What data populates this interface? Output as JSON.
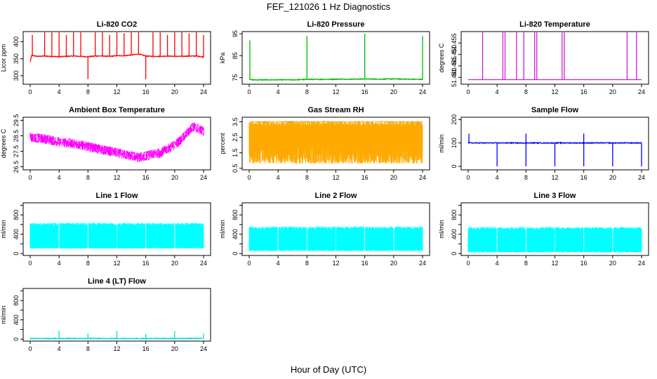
{
  "title": "FEF_121026  1 Hz Diagnostics",
  "xlabel": "Hour of Day (UTC)",
  "chart_data": [
    {
      "type": "line",
      "title": "Li-820 CO2",
      "ylabel": "Licor ppm",
      "color": "#ff0000",
      "xlim": [
        0,
        24
      ],
      "ylim": [
        275,
        430
      ],
      "xticks": [
        0,
        4,
        8,
        12,
        16,
        20,
        24
      ],
      "yticks": [
        300,
        350,
        400
      ],
      "series": [
        {
          "x": [
            0,
            0.2,
            1,
            2,
            3,
            4,
            5,
            6,
            7,
            8,
            9,
            10,
            11,
            12,
            13,
            14,
            15,
            16,
            17,
            18,
            19,
            20,
            21,
            22,
            23,
            24
          ],
          "values": [
            340,
            360,
            357,
            358,
            357,
            356,
            357,
            358,
            357,
            356,
            358,
            358,
            357,
            359,
            359,
            361,
            364,
            358,
            357,
            357,
            358,
            357,
            357,
            358,
            358,
            355
          ],
          "spikes": [
            [
              0.3,
              420
            ],
            [
              2,
              430
            ],
            [
              3,
              430
            ],
            [
              4,
              430
            ],
            [
              5,
              420
            ],
            [
              6,
              430
            ],
            [
              7,
              430
            ],
            [
              8,
              290
            ],
            [
              9,
              430
            ],
            [
              10,
              430
            ],
            [
              11,
              420
            ],
            [
              12,
              430
            ],
            [
              13,
              425
            ],
            [
              14,
              430
            ],
            [
              15,
              430
            ],
            [
              16,
              290
            ],
            [
              17,
              430
            ],
            [
              18,
              430
            ],
            [
              19,
              420
            ],
            [
              20,
              430
            ],
            [
              21,
              430
            ],
            [
              22,
              425
            ],
            [
              23,
              430
            ],
            [
              24,
              420
            ]
          ]
        }
      ]
    },
    {
      "type": "line",
      "title": "Li-820 Pressure",
      "ylabel": "kPa",
      "color": "#00bb00",
      "xlim": [
        0,
        24
      ],
      "ylim": [
        72,
        96
      ],
      "xticks": [
        0,
        4,
        8,
        12,
        16,
        20,
        24
      ],
      "yticks": [
        75,
        85,
        95
      ],
      "series": [
        {
          "x": [
            0,
            0.3,
            2,
            4,
            6,
            8,
            10,
            12,
            14,
            16,
            18,
            20,
            22,
            24
          ],
          "values": [
            74.5,
            74,
            74,
            74,
            74,
            74.2,
            74.2,
            74.3,
            74.3,
            74.4,
            74.3,
            74.4,
            74.3,
            74.2
          ],
          "spikes": [
            [
              0.1,
              92
            ],
            [
              8,
              94
            ],
            [
              16,
              95
            ],
            [
              24,
              94
            ]
          ]
        }
      ]
    },
    {
      "type": "line",
      "title": "Li-820 Temperature",
      "ylabel": "degrees C",
      "color": "#cc22cc",
      "xlim": [
        0,
        24
      ],
      "ylim": [
        51.437,
        51.46
      ],
      "xticks": [
        0,
        4,
        8,
        12,
        16,
        20,
        24
      ],
      "yticks": [
        51.44,
        51.445,
        51.45,
        51.455
      ],
      "ytick_labels": [
        "51.440",
        "51.445",
        "51.450",
        "51.455"
      ],
      "series": [
        {
          "x": [
            0,
            24
          ],
          "values": [
            51.439,
            51.439
          ],
          "spikes": [
            [
              2,
              51.46
            ],
            [
              4.8,
              51.46
            ],
            [
              5.1,
              51.46
            ],
            [
              6.7,
              51.46
            ],
            [
              7.7,
              51.46
            ],
            [
              9.2,
              51.46
            ],
            [
              9.5,
              51.46
            ],
            [
              13,
              51.46
            ],
            [
              13.3,
              51.46
            ],
            [
              22,
              51.46
            ],
            [
              23.3,
              51.46
            ]
          ]
        }
      ]
    },
    {
      "type": "line",
      "title": "Ambient Box Temperature",
      "ylabel": "degrees C",
      "color": "#ff00ff",
      "xlim": [
        0,
        24
      ],
      "ylim": [
        26.3,
        29.7
      ],
      "xticks": [
        0,
        4,
        8,
        12,
        16,
        20,
        24
      ],
      "yticks": [
        26.5,
        27.5,
        28.5,
        29.5
      ],
      "series": [
        {
          "x": [
            0,
            2,
            4,
            6,
            8,
            10,
            12,
            14,
            15,
            16,
            18,
            20,
            21,
            22,
            22.5,
            23,
            24
          ],
          "values": [
            28.4,
            28.3,
            28.1,
            28.0,
            27.8,
            27.6,
            27.4,
            27.2,
            27.1,
            27.2,
            27.4,
            27.9,
            28.3,
            28.8,
            29.1,
            29.0,
            28.8
          ],
          "band": 0.7
        }
      ]
    },
    {
      "type": "line",
      "title": "Gas Stream RH",
      "ylabel": "percent",
      "color": "#ffaa00",
      "xlim": [
        0,
        24
      ],
      "ylim": [
        0.4,
        3.8
      ],
      "xticks": [
        0,
        4,
        8,
        12,
        16,
        20,
        24
      ],
      "yticks": [
        0.5,
        1.5,
        2.5,
        3.5
      ],
      "ytick_labels": [
        "0.5",
        "1.5",
        "2.5",
        "3.5"
      ],
      "series": [
        {
          "x": [
            0,
            24
          ],
          "values": [
            3.55,
            3.55
          ],
          "min_values": [
            0.8,
            0.8
          ]
        }
      ]
    },
    {
      "type": "line",
      "title": "Sample Flow",
      "ylabel": "ml/min",
      "color": "#0000ff",
      "xlim": [
        0,
        24
      ],
      "ylim": [
        -15,
        210
      ],
      "xticks": [
        0,
        4,
        8,
        12,
        16,
        20,
        24
      ],
      "yticks": [
        0,
        100,
        200
      ],
      "series": [
        {
          "x": [
            0,
            24
          ],
          "values": [
            100,
            100
          ],
          "spikes": [
            [
              0.1,
              140
            ],
            [
              4,
              0
            ],
            [
              8,
              140
            ],
            [
              8,
              0
            ],
            [
              12,
              0
            ],
            [
              16,
              140
            ],
            [
              16,
              0
            ],
            [
              20,
              0
            ],
            [
              24,
              0
            ]
          ]
        }
      ]
    },
    {
      "type": "area",
      "title": "Line 1 Flow",
      "ylabel": "ml/min",
      "color": "#00ffff",
      "xlim": [
        0,
        24
      ],
      "ylim": [
        -40,
        1050
      ],
      "xticks": [
        0,
        4,
        8,
        12,
        16,
        20,
        24
      ],
      "yticks": [
        0,
        200,
        400,
        600,
        800,
        1000
      ],
      "ytick_labels": [
        "0",
        "",
        "400",
        "",
        "800",
        ""
      ],
      "series": [
        {
          "x": [
            0,
            24
          ],
          "values": [
            640,
            640
          ],
          "min_values": [
            100,
            100
          ],
          "gaps": [
            4,
            8,
            12,
            16,
            20
          ]
        }
      ]
    },
    {
      "type": "area",
      "title": "Line 2 Flow",
      "ylabel": "ml/min",
      "color": "#00ffff",
      "xlim": [
        0,
        24
      ],
      "ylim": [
        -40,
        1050
      ],
      "xticks": [
        0,
        4,
        8,
        12,
        16,
        20,
        24
      ],
      "yticks": [
        0,
        200,
        400,
        600,
        800,
        1000
      ],
      "ytick_labels": [
        "0",
        "",
        "400",
        "",
        "800",
        ""
      ],
      "series": [
        {
          "x": [
            0,
            24
          ],
          "values": [
            560,
            560
          ],
          "min_values": [
            50,
            50
          ],
          "gaps": [
            4,
            8,
            12,
            16,
            20
          ]
        }
      ]
    },
    {
      "type": "area",
      "title": "Line 3 Flow",
      "ylabel": "ml/min",
      "color": "#00ffff",
      "xlim": [
        0,
        24
      ],
      "ylim": [
        -40,
        1050
      ],
      "xticks": [
        0,
        4,
        8,
        12,
        16,
        20,
        24
      ],
      "yticks": [
        0,
        200,
        400,
        600,
        800,
        1000
      ],
      "ytick_labels": [
        "0",
        "",
        "400",
        "",
        "800",
        ""
      ],
      "series": [
        {
          "x": [
            0,
            24
          ],
          "values": [
            550,
            550
          ],
          "min_values": [
            20,
            20
          ],
          "gaps": [
            4,
            8,
            12,
            16,
            20
          ]
        }
      ]
    },
    {
      "type": "line",
      "title": "Line 4 (LT) Flow",
      "ylabel": "ml/min",
      "color": "#00e0e0",
      "xlim": [
        0,
        24
      ],
      "ylim": [
        -40,
        1050
      ],
      "xticks": [
        0,
        4,
        8,
        12,
        16,
        20,
        24
      ],
      "yticks": [
        0,
        200,
        400,
        600,
        800,
        1000
      ],
      "ytick_labels": [
        "0",
        "",
        "400",
        "",
        "800",
        ""
      ],
      "series": [
        {
          "x": [
            0,
            24
          ],
          "values": [
            15,
            15
          ],
          "spikes": [
            [
              4,
              180
            ],
            [
              8,
              120
            ],
            [
              12,
              170
            ],
            [
              16,
              110
            ],
            [
              20,
              170
            ],
            [
              24,
              120
            ]
          ]
        }
      ]
    }
  ]
}
